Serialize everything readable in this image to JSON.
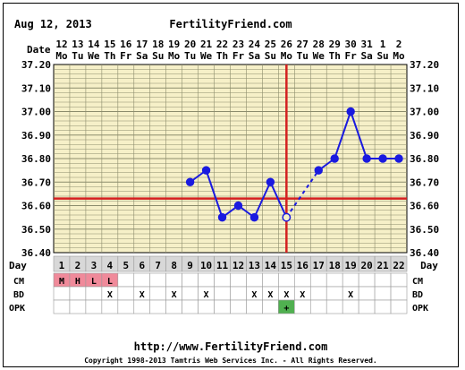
{
  "header": {
    "date": "Aug 12, 2013",
    "site": "FertilityFriend.com"
  },
  "footer": {
    "url": "http://www.FertilityFriend.com",
    "copyright": "Copyright 1998-2013 Tamtris Web Services Inc. - All Rights Reserved."
  },
  "row_labels": {
    "date": "Date",
    "day": "Day",
    "cm": "CM",
    "bd": "BD",
    "opk": "OPK"
  },
  "colors": {
    "grid_bg": "#f6f0c8",
    "grid_line": "#8c8c6c",
    "series": "#1a1adf",
    "coverline": "#d42020",
    "ovulation": "#d42020",
    "cm_fill": "#f08a9a",
    "opk_fill": "#50b050",
    "day_row_fill": "#d8d8d8",
    "title": "#1a1ab4"
  },
  "chart_data": {
    "type": "line",
    "title": "FertilityFriend.com",
    "dates": [
      "12",
      "13",
      "14",
      "15",
      "16",
      "17",
      "18",
      "19",
      "20",
      "21",
      "22",
      "23",
      "24",
      "25",
      "26",
      "27",
      "28",
      "29",
      "30",
      "31",
      "1",
      "2"
    ],
    "weekdays": [
      "Mo",
      "Tu",
      "We",
      "Th",
      "Fr",
      "Sa",
      "Su",
      "Mo",
      "Tu",
      "We",
      "Th",
      "Fr",
      "Sa",
      "Su",
      "Mo",
      "Tu",
      "We",
      "Th",
      "Fr",
      "Sa",
      "Su",
      "Mo"
    ],
    "cycle_days": [
      "1",
      "2",
      "3",
      "4",
      "5",
      "6",
      "7",
      "8",
      "9",
      "10",
      "11",
      "12",
      "13",
      "14",
      "15",
      "16",
      "17",
      "18",
      "19",
      "20",
      "21",
      "22"
    ],
    "y_ticks": [
      "37.20",
      "37.10",
      "37.00",
      "36.90",
      "36.80",
      "36.70",
      "36.60",
      "36.50",
      "36.40"
    ],
    "ylim": [
      36.4,
      37.2
    ],
    "temps": [
      null,
      null,
      null,
      null,
      null,
      null,
      null,
      null,
      36.7,
      36.75,
      36.55,
      36.6,
      36.55,
      36.7,
      36.55,
      null,
      36.75,
      36.8,
      37.0,
      36.8,
      36.8,
      36.8
    ],
    "dashed_segments": [
      [
        15,
        17
      ]
    ],
    "coverline": 36.63,
    "ovulation_day": 15,
    "cm": [
      "M",
      "H",
      "L",
      "L",
      "",
      "",
      "",
      "",
      "",
      "",
      "",
      "",
      "",
      "",
      "",
      "",
      "",
      "",
      "",
      "",
      "",
      ""
    ],
    "bd": [
      "",
      "",
      "",
      "X",
      "",
      "X",
      "",
      "X",
      "",
      "X",
      "",
      "",
      "X",
      "X",
      "X",
      "X",
      "",
      "",
      "X",
      "",
      "",
      ""
    ],
    "opk": [
      "",
      "",
      "",
      "",
      "",
      "",
      "",
      "",
      "",
      "",
      "",
      "",
      "",
      "",
      "+",
      "",
      "",
      "",
      "",
      "",
      "",
      ""
    ]
  }
}
